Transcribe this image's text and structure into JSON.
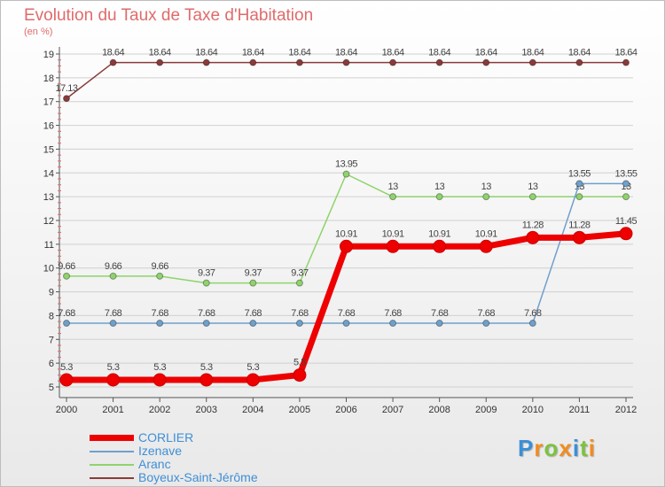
{
  "title": "Evolution du Taux de Taxe d'Habitation",
  "unit": "(en %)",
  "logo": "Proxiti",
  "chart_data": {
    "type": "line",
    "x": [
      "2000",
      "2001",
      "2002",
      "2003",
      "2004",
      "2005",
      "2006",
      "2007",
      "2008",
      "2009",
      "2010",
      "2011",
      "2012"
    ],
    "ylim": [
      5,
      19
    ],
    "yticks": [
      5,
      6,
      7,
      8,
      9,
      10,
      11,
      12,
      13,
      14,
      15,
      16,
      17,
      18,
      19
    ],
    "grid": true,
    "legend_position": "bottom-left",
    "series": [
      {
        "name": "Boyeux-Saint-Jérôme",
        "color": "#8b3a3a",
        "values": [
          17.13,
          18.64,
          18.64,
          18.64,
          18.64,
          18.64,
          18.64,
          18.64,
          18.64,
          18.64,
          18.64,
          18.64,
          18.64
        ],
        "labels": [
          "17.13",
          "18.64",
          "18.64",
          "18.64",
          "18.64",
          "18.64",
          "18.64",
          "18.64",
          "18.64",
          "18.64",
          "18.64",
          "18.64",
          "18.64"
        ]
      },
      {
        "name": "Aranc",
        "color": "#8ed36b",
        "values": [
          9.66,
          9.66,
          9.66,
          9.37,
          9.37,
          9.37,
          13.95,
          13,
          13,
          13,
          13,
          13,
          13
        ],
        "labels": [
          "9.66",
          "9.66",
          "9.66",
          "9.37",
          "9.37",
          "9.37",
          "13.95",
          "13",
          "13",
          "13",
          "13",
          "13",
          "13"
        ]
      },
      {
        "name": "Izenave",
        "color": "#6fa0cc",
        "values": [
          7.68,
          7.68,
          7.68,
          7.68,
          7.68,
          7.68,
          7.68,
          7.68,
          7.68,
          7.68,
          7.68,
          13.55,
          13.55
        ],
        "labels": [
          "7.68",
          "7.68",
          "7.68",
          "7.68",
          "7.68",
          "7.68",
          "7.68",
          "7.68",
          "7.68",
          "7.68",
          "7.68",
          "13.55",
          "13.55"
        ]
      },
      {
        "name": "CORLIER",
        "color": "#ee0000",
        "values": [
          5.3,
          5.3,
          5.3,
          5.3,
          5.3,
          5.5,
          10.91,
          10.91,
          10.91,
          10.91,
          11.28,
          11.28,
          11.45
        ],
        "labels": [
          "5.3",
          "5.3",
          "5.3",
          "5.3",
          "5.3",
          "5.5",
          "10.91",
          "10.91",
          "10.91",
          "10.91",
          "11.28",
          "11.28",
          "11.45"
        ]
      }
    ],
    "legend": [
      {
        "name": "CORLIER",
        "color": "#ee0000"
      },
      {
        "name": "Izenave",
        "color": "#6fa0cc"
      },
      {
        "name": "Aranc",
        "color": "#8ed36b"
      },
      {
        "name": "Boyeux-Saint-Jérôme",
        "color": "#8b3a3a"
      }
    ]
  }
}
